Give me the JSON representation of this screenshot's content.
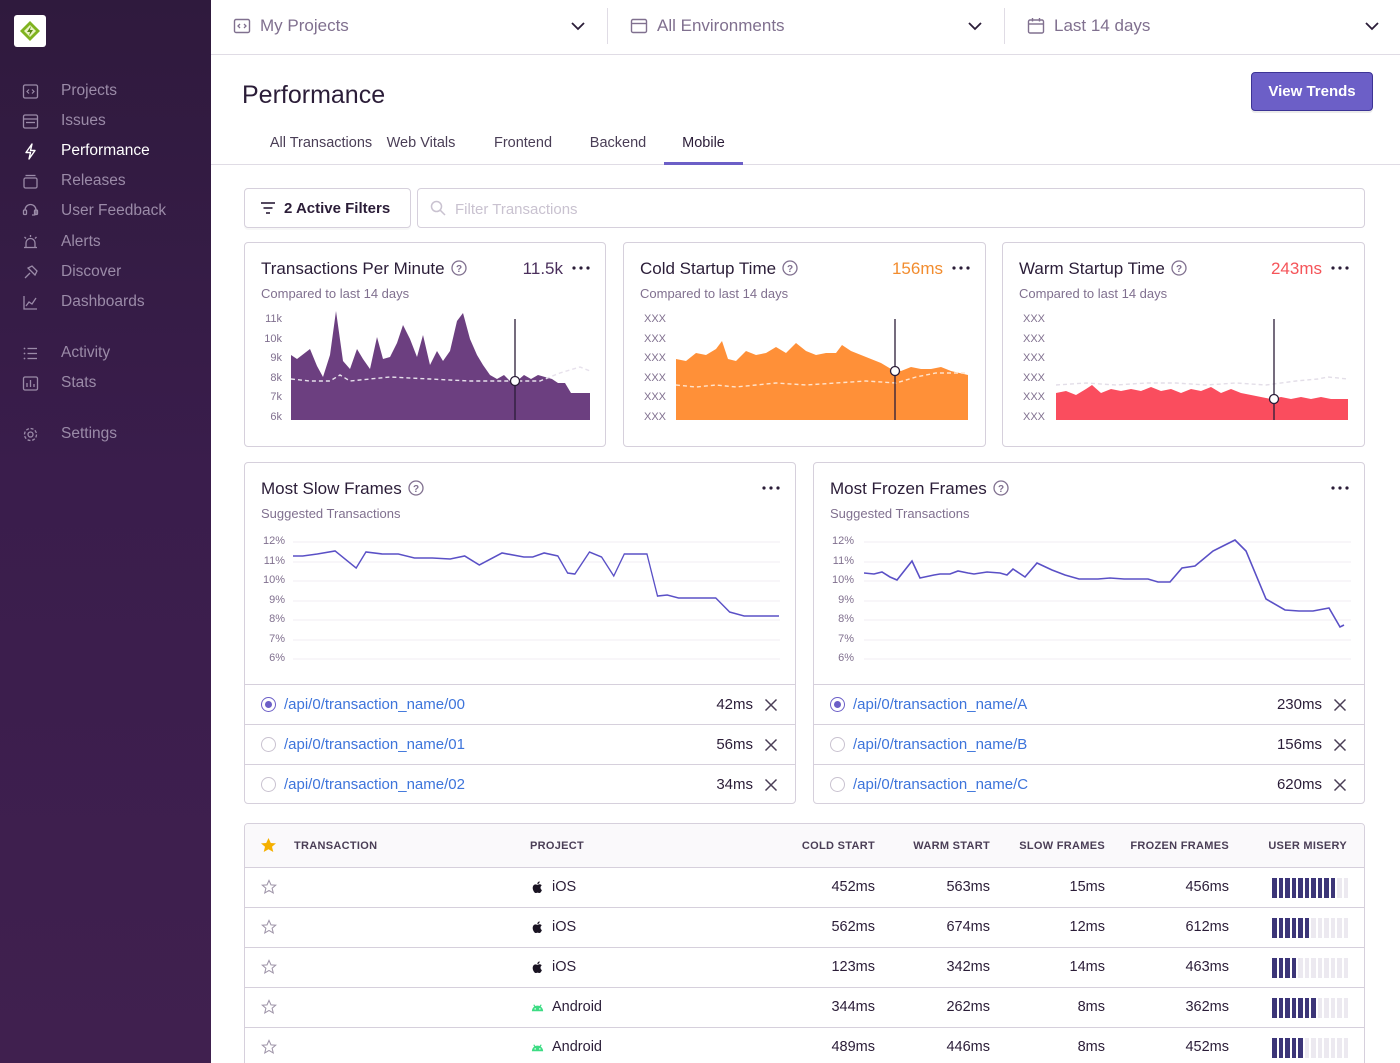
{
  "sidebar": {
    "items": [
      {
        "label": "Projects",
        "icon": "projects-icon"
      },
      {
        "label": "Issues",
        "icon": "issues-icon"
      },
      {
        "label": "Performance",
        "icon": "performance-icon",
        "active": true
      },
      {
        "label": "Releases",
        "icon": "releases-icon"
      },
      {
        "label": "User Feedback",
        "icon": "user-feedback-icon"
      },
      {
        "label": "Alerts",
        "icon": "alerts-icon"
      },
      {
        "label": "Discover",
        "icon": "discover-icon"
      },
      {
        "label": "Dashboards",
        "icon": "dashboards-icon"
      },
      {
        "label": "Activity",
        "icon": "activity-icon"
      },
      {
        "label": "Stats",
        "icon": "stats-icon"
      },
      {
        "label": "Settings",
        "icon": "settings-icon"
      }
    ]
  },
  "header": {
    "projects": "My Projects",
    "environments": "All Environments",
    "period": "Last 14 days"
  },
  "page": {
    "title": "Performance",
    "view_trends": "View Trends",
    "tabs": [
      "All Transactions",
      "Web Vitals",
      "Frontend",
      "Backend",
      "Mobile"
    ],
    "active_tab": "Mobile"
  },
  "filters": {
    "button_label": "2 Active Filters",
    "search_placeholder": "Filter Transactions"
  },
  "cards": {
    "tpm": {
      "title": "Transactions Per Minute",
      "subtitle": "Compared to last 14 days",
      "value": "11.5k",
      "value_color": "#4a2f5c",
      "area_color": "#6c3f80",
      "yticks": [
        "11k",
        "10k",
        "9k",
        "8k",
        "7k",
        "6k"
      ]
    },
    "cold": {
      "title": "Cold Startup Time",
      "subtitle": "Compared to last 14 days",
      "value": "156ms",
      "value_color": "#f28c2e",
      "area_color": "#ff9038",
      "yticks": [
        "XXX",
        "XXX",
        "XXX",
        "XXX",
        "XXX",
        "XXX"
      ]
    },
    "warm": {
      "title": "Warm Startup Time",
      "subtitle": "Compared to last 14 days",
      "value": "243ms",
      "value_color": "#f55459",
      "area_color": "#fa4d5e",
      "yticks": [
        "XXX",
        "XXX",
        "XXX",
        "XXX",
        "XXX",
        "XXX"
      ]
    },
    "slow": {
      "title": "Most Slow Frames",
      "subtitle": "Suggested Transactions",
      "yticks": [
        "12%",
        "11%",
        "10%",
        "9%",
        "8%",
        "7%",
        "6%"
      ],
      "rows": [
        {
          "name": "/api/0/transaction_name/00",
          "value": "42ms",
          "checked": true
        },
        {
          "name": "/api/0/transaction_name/01",
          "value": "56ms",
          "checked": false
        },
        {
          "name": "/api/0/transaction_name/02",
          "value": "34ms",
          "checked": false
        }
      ]
    },
    "frozen": {
      "title": "Most Frozen Frames",
      "subtitle": "Suggested Transactions",
      "yticks": [
        "12%",
        "11%",
        "10%",
        "9%",
        "8%",
        "7%",
        "6%"
      ],
      "rows": [
        {
          "name": "/api/0/transaction_name/A",
          "value": "230ms",
          "checked": true
        },
        {
          "name": "/api/0/transaction_name/B",
          "value": "156ms",
          "checked": false
        },
        {
          "name": "/api/0/transaction_name/C",
          "value": "620ms",
          "checked": false
        }
      ]
    }
  },
  "table": {
    "columns": [
      "TRANSACTION",
      "PROJECT",
      "COLD START",
      "WARM START",
      "SLOW FRAMES",
      "FROZEN FRAMES",
      "USER MISERY"
    ],
    "rows": [
      {
        "project": "iOS",
        "platform": "apple-icon",
        "cold": "452ms",
        "warm": "563ms",
        "slow": "15ms",
        "frozen": "456ms",
        "misery": 0.85
      },
      {
        "project": "iOS",
        "platform": "apple-icon",
        "cold": "562ms",
        "warm": "674ms",
        "slow": "12ms",
        "frozen": "612ms",
        "misery": 0.5
      },
      {
        "project": "iOS",
        "platform": "apple-icon",
        "cold": "123ms",
        "warm": "342ms",
        "slow": "14ms",
        "frozen": "463ms",
        "misery": 0.3
      },
      {
        "project": "Android",
        "platform": "android-icon",
        "cold": "344ms",
        "warm": "262ms",
        "slow": "8ms",
        "frozen": "362ms",
        "misery": 0.6
      },
      {
        "project": "Android",
        "platform": "android-icon",
        "cold": "489ms",
        "warm": "446ms",
        "slow": "8ms",
        "frozen": "452ms",
        "misery": 0.4
      }
    ]
  }
}
